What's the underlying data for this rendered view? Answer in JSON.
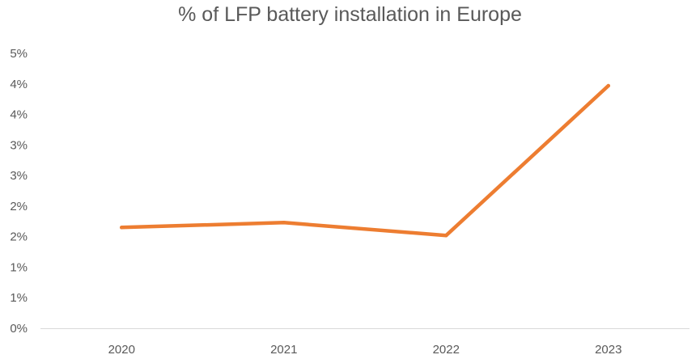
{
  "chart_data": {
    "type": "line",
    "title": "% of LFP battery installation in Europe",
    "xlabel": "",
    "ylabel": "",
    "categories": [
      "2020",
      "2021",
      "2022",
      "2023"
    ],
    "series": [
      {
        "name": "% of LFP battery installation",
        "values": [
          1.65,
          1.73,
          1.52,
          3.97
        ],
        "color": "#ED7D31"
      }
    ],
    "ylim": [
      0,
      4.5
    ],
    "yticks": [
      0,
      0.5,
      1,
      1.5,
      2,
      2.5,
      3,
      3.5,
      4,
      4.5
    ],
    "ytick_labels": [
      "0%",
      "1%",
      "1%",
      "2%",
      "2%",
      "3%",
      "3%",
      "4%",
      "4%",
      "5%"
    ],
    "grid": false,
    "legend": "none"
  }
}
